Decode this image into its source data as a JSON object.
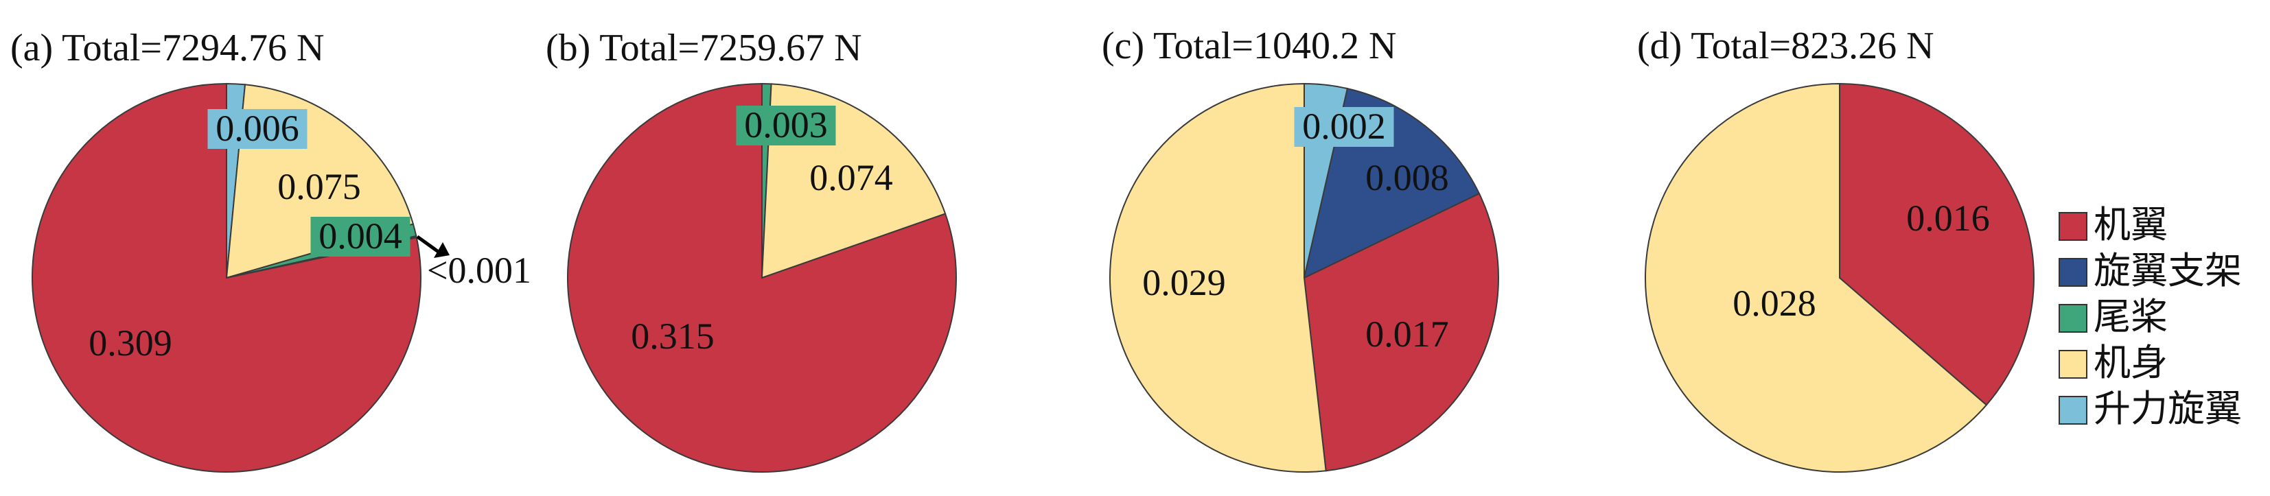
{
  "colors": {
    "机翼": "#C73645",
    "旋翼支架": "#2F4F8C",
    "尾桨": "#3FA57A",
    "机身": "#FDE49A",
    "升力旋翼": "#7BBFD9"
  },
  "legend": [
    "机翼",
    "旋翼支架",
    "尾桨",
    "机身",
    "升力旋翼"
  ],
  "chart_data": [
    {
      "type": "pie",
      "title": "(a)  Total=7294.76 N",
      "slices": [
        {
          "name": "升力旋翼",
          "value": 0.006,
          "label": "0.006"
        },
        {
          "name": "机身",
          "value": 0.075,
          "label": "0.075"
        },
        {
          "name": "尾桨",
          "value": 0.004,
          "label": "0.004"
        },
        {
          "name": "旋翼支架",
          "value": 0.0005,
          "label": "<0.001"
        },
        {
          "name": "机翼",
          "value": 0.309,
          "label": "0.309"
        }
      ]
    },
    {
      "type": "pie",
      "title": "(b)  Total=7259.67 N",
      "slices": [
        {
          "name": "尾桨",
          "value": 0.003,
          "label": "0.003"
        },
        {
          "name": "机身",
          "value": 0.074,
          "label": "0.074"
        },
        {
          "name": "机翼",
          "value": 0.315,
          "label": "0.315"
        }
      ]
    },
    {
      "type": "pie",
      "title": "(c)  Total=1040.2 N",
      "slices": [
        {
          "name": "升力旋翼",
          "value": 0.002,
          "label": "0.002"
        },
        {
          "name": "旋翼支架",
          "value": 0.008,
          "label": "0.008"
        },
        {
          "name": "机翼",
          "value": 0.017,
          "label": "0.017"
        },
        {
          "name": "机身",
          "value": 0.029,
          "label": "0.029"
        }
      ]
    },
    {
      "type": "pie",
      "title": "(d)  Total=823.26 N",
      "slices": [
        {
          "name": "机翼",
          "value": 0.016,
          "label": "0.016"
        },
        {
          "name": "机身",
          "value": 0.028,
          "label": "0.028"
        }
      ]
    }
  ]
}
